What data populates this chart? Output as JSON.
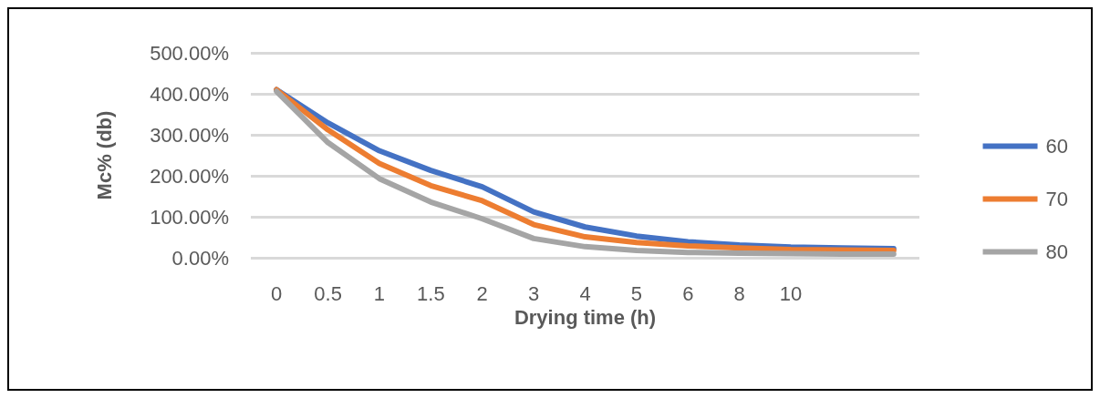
{
  "chart_data": {
    "type": "line",
    "xlabel": "Drying time (h)",
    "ylabel": "Mc% (db)",
    "categories": [
      "0",
      "0.5",
      "1",
      "1.5",
      "2",
      "3",
      "4",
      "5",
      "6",
      "8",
      "10",
      null,
      null
    ],
    "series": [
      {
        "name": "60",
        "color": "#4472c4",
        "values": [
          410,
          329,
          261,
          213,
          173,
          112,
          75,
          53,
          39,
          31,
          26,
          24,
          22
        ]
      },
      {
        "name": "70",
        "color": "#ed7d31",
        "values": [
          410,
          312,
          230,
          176,
          139,
          81,
          51,
          37,
          29,
          24,
          20,
          19,
          18
        ]
      },
      {
        "name": "80",
        "color": "#a5a5a5",
        "values": [
          406,
          281,
          193,
          136,
          95,
          47,
          27,
          18,
          13,
          11,
          10,
          9,
          9
        ]
      }
    ],
    "ylim": [
      0,
      500
    ],
    "yticks": [
      {
        "value": 0,
        "label": "0.00%"
      },
      {
        "value": 100,
        "label": "100.00%"
      },
      {
        "value": 200,
        "label": "200.00%"
      },
      {
        "value": 300,
        "label": "300.00%"
      },
      {
        "value": 400,
        "label": "400.00%"
      },
      {
        "value": 500,
        "label": "500.00%"
      }
    ],
    "grid": "y",
    "legend": "right",
    "marker": "none",
    "line_style": "solid"
  }
}
